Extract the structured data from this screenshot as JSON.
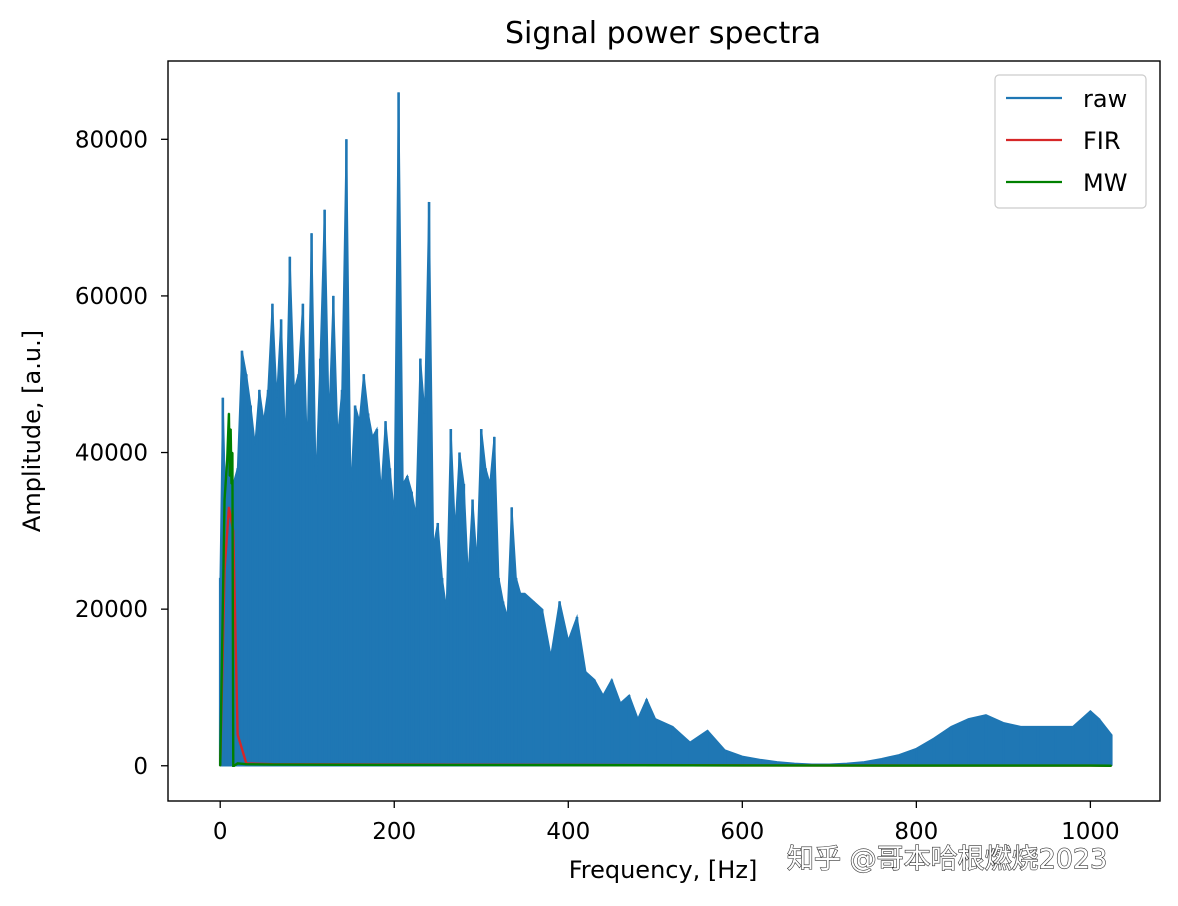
{
  "chart_data": {
    "type": "line",
    "title": "Signal power spectra",
    "xlabel": "Frequency, [Hz]",
    "ylabel": "Amplitude, [a.u.]",
    "xlim": [
      -60,
      1080
    ],
    "ylim": [
      -4500,
      90000
    ],
    "xticks": [
      0,
      200,
      400,
      600,
      800,
      1000
    ],
    "yticks": [
      0,
      20000,
      40000,
      60000,
      80000
    ],
    "xtick_labels": [
      "0",
      "200",
      "400",
      "600",
      "800",
      "1000"
    ],
    "ytick_labels": [
      "0",
      "20000",
      "40000",
      "60000",
      "80000"
    ],
    "legend_position": "top-right",
    "series": [
      {
        "name": "raw",
        "color": "#1f77b4",
        "x": [
          0,
          3,
          6,
          10,
          15,
          20,
          25,
          30,
          35,
          40,
          45,
          50,
          55,
          60,
          65,
          70,
          75,
          80,
          85,
          90,
          95,
          100,
          105,
          110,
          115,
          120,
          125,
          130,
          135,
          140,
          145,
          150,
          155,
          160,
          165,
          170,
          175,
          180,
          185,
          190,
          195,
          200,
          205,
          210,
          215,
          220,
          225,
          230,
          235,
          240,
          245,
          250,
          255,
          260,
          265,
          270,
          275,
          280,
          285,
          290,
          295,
          300,
          305,
          310,
          315,
          320,
          325,
          330,
          335,
          340,
          345,
          350,
          360,
          370,
          380,
          390,
          400,
          410,
          420,
          430,
          440,
          450,
          460,
          470,
          480,
          490,
          500,
          520,
          540,
          560,
          580,
          600,
          620,
          640,
          660,
          680,
          700,
          720,
          740,
          760,
          780,
          800,
          820,
          840,
          860,
          880,
          900,
          920,
          940,
          960,
          980,
          1000,
          1010,
          1024
        ],
        "y": [
          24000,
          47000,
          34000,
          40000,
          36000,
          38000,
          53000,
          50000,
          46000,
          41000,
          48000,
          44000,
          48000,
          59000,
          47000,
          57000,
          41000,
          65000,
          48000,
          50000,
          59000,
          40000,
          68000,
          36000,
          52000,
          71000,
          44000,
          60000,
          42000,
          48000,
          80000,
          35000,
          46000,
          44000,
          50000,
          45000,
          42000,
          43000,
          35000,
          44000,
          38000,
          32000,
          86000,
          36000,
          37000,
          35000,
          32000,
          52000,
          45000,
          72000,
          28000,
          31000,
          24000,
          20000,
          43000,
          30000,
          40000,
          36000,
          24000,
          34000,
          26000,
          43000,
          38000,
          36000,
          42000,
          24000,
          21000,
          19000,
          33000,
          24000,
          22000,
          22000,
          21000,
          20000,
          14000,
          21000,
          16000,
          19000,
          12000,
          11000,
          9000,
          11000,
          8000,
          9000,
          6000,
          8500,
          6000,
          5000,
          3000,
          4500,
          2000,
          1200,
          800,
          500,
          300,
          200,
          200,
          300,
          500,
          900,
          1400,
          2200,
          3500,
          5000,
          6000,
          6500,
          5500,
          5000,
          5000,
          5000,
          5000,
          7000,
          6000,
          4000
        ]
      },
      {
        "name": "FIR",
        "color": "#d62728",
        "x": [
          0,
          5,
          10,
          15,
          20,
          30,
          60,
          200,
          400,
          600,
          800,
          1000,
          1024
        ],
        "y": [
          0,
          25000,
          33000,
          30000,
          4000,
          300,
          200,
          150,
          100,
          50,
          30,
          20,
          0
        ]
      },
      {
        "name": "MW",
        "color": "#008000",
        "x": [
          0,
          5,
          8,
          10,
          11,
          12,
          13,
          14,
          15,
          16,
          20,
          30,
          60,
          200,
          400,
          600,
          800,
          1000,
          1024
        ],
        "y": [
          0,
          34000,
          39000,
          45000,
          37000,
          43000,
          36000,
          40000,
          0,
          0,
          300,
          200,
          150,
          100,
          80,
          40,
          30,
          20,
          0
        ]
      }
    ]
  },
  "watermark": {
    "text": "知乎 @哥本哈根燃烧2023"
  }
}
